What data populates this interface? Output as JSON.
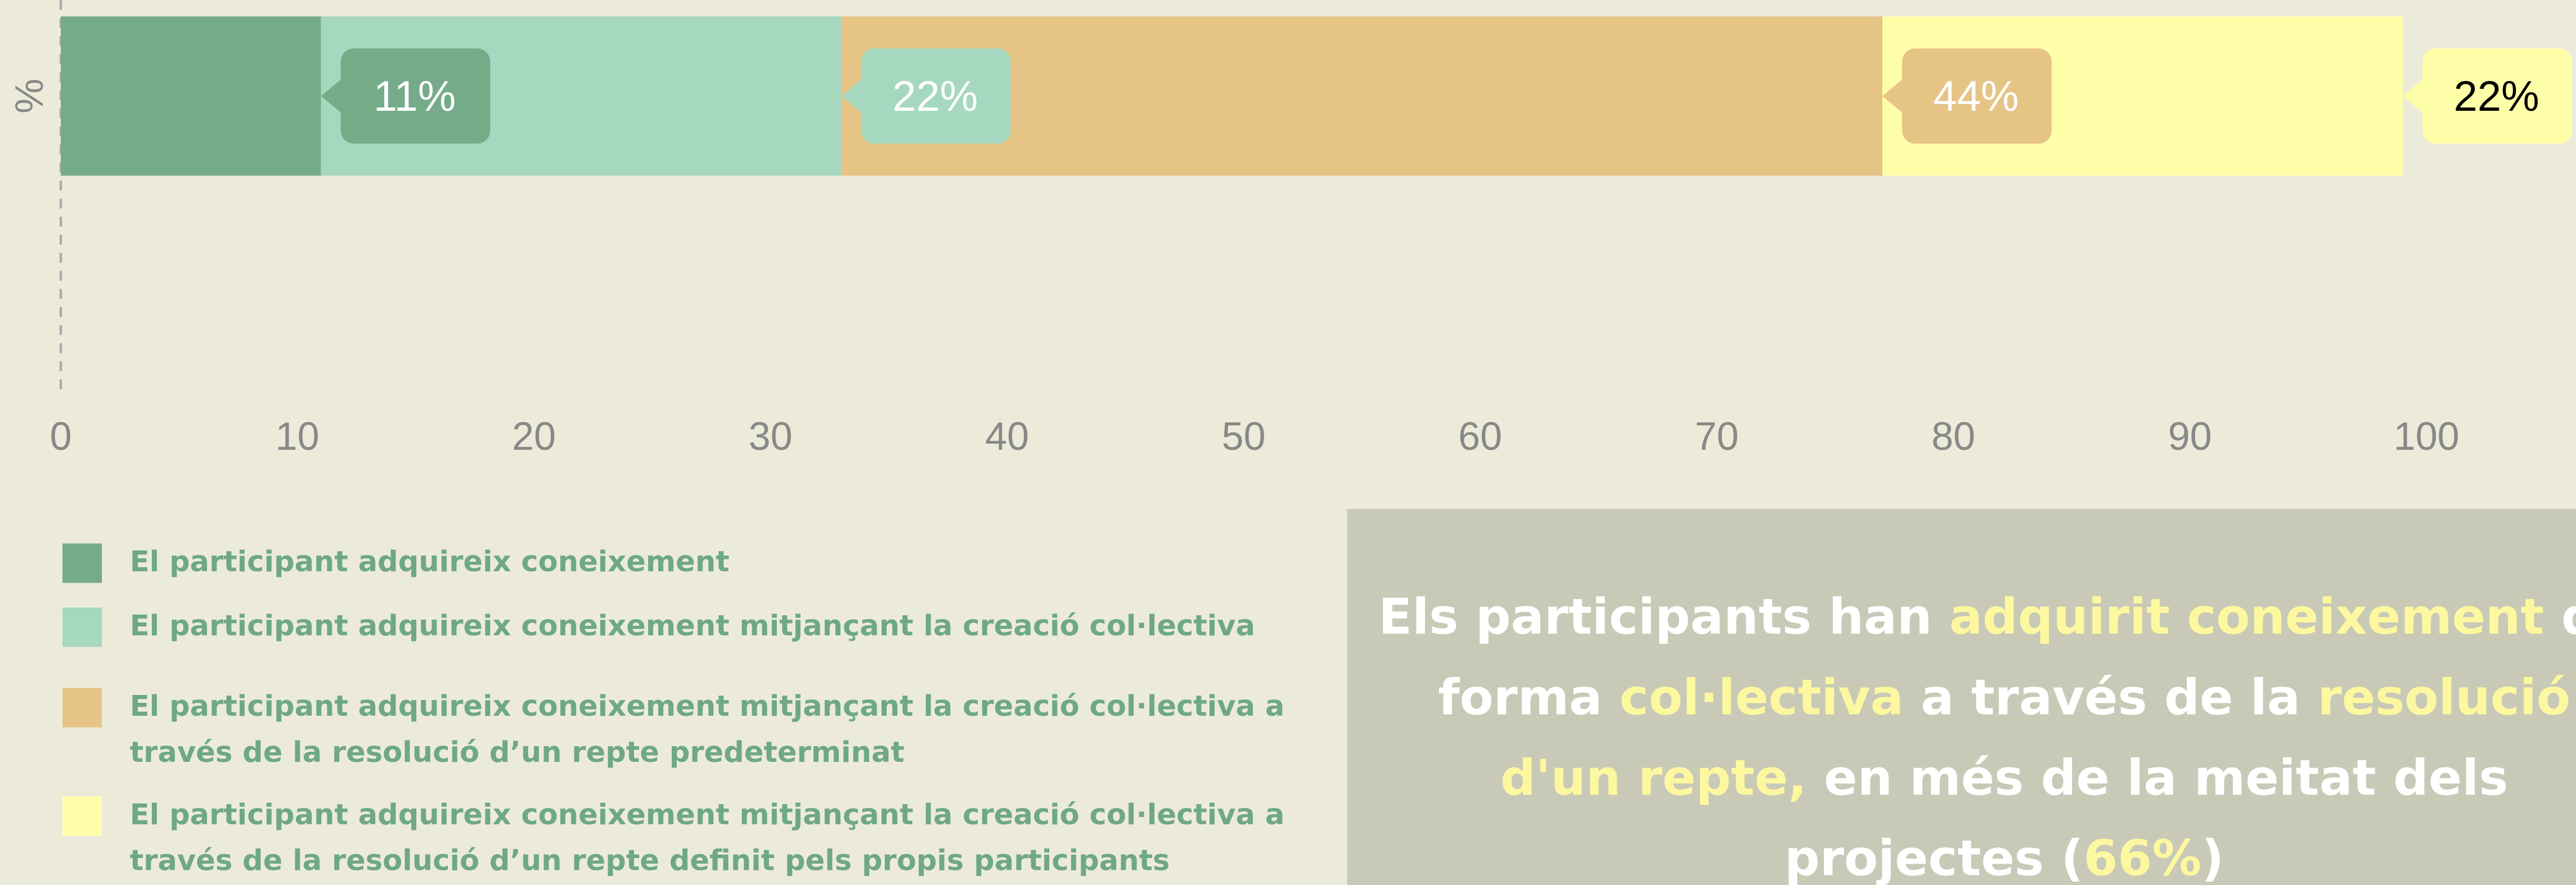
{
  "chart_data": {
    "type": "stacked_bar_horizontal",
    "categories": [
      "%"
    ],
    "series": [
      {
        "name": "El participant adquireix coneixement",
        "color": "#76ab8a",
        "label_color": "#ffffff",
        "values": [
          11
        ],
        "value_labels": [
          "11%"
        ]
      },
      {
        "name": "El participant adquireix coneixement mitjançant la creació col·lectiva",
        "color": "#a6d8bf",
        "label_color": "#ffffff",
        "values": [
          22
        ],
        "value_labels": [
          "22%"
        ]
      },
      {
        "name": "El participant adquireix coneixement mitjançant la creació col·lectiva a través de la resolució d’un repte predeterminat",
        "color": "#e5c486",
        "label_color": "#ffffff",
        "values": [
          44
        ],
        "value_labels": [
          "44%"
        ]
      },
      {
        "name": "El participant adquireix coneixement mitjançant la creació col·lectiva a través de la resolució d’un repte definit pels propis participants",
        "color": "#fffea8",
        "label_color": "#000000",
        "values": [
          22
        ],
        "value_labels": [
          "22%"
        ]
      }
    ],
    "xlim": [
      0,
      100
    ],
    "xticks": [
      0,
      10,
      20,
      30,
      40,
      50,
      60,
      70,
      80,
      90,
      100
    ],
    "annotation": {
      "parts": [
        {
          "text": "Els participants han ",
          "highlight": false
        },
        {
          "text": "adquirit coneixement",
          "highlight": true
        },
        {
          "text": " de forma ",
          "highlight": false
        },
        {
          "text": "col·lectiva",
          "highlight": true
        },
        {
          "text": " a través de la ",
          "highlight": false
        },
        {
          "text": "resolució d'un repte,",
          "highlight": true
        },
        {
          "text": " en més de la meitat dels projectes (",
          "highlight": false
        },
        {
          "text": "66%",
          "highlight": true
        },
        {
          "text": ")",
          "highlight": false
        }
      ]
    }
  }
}
